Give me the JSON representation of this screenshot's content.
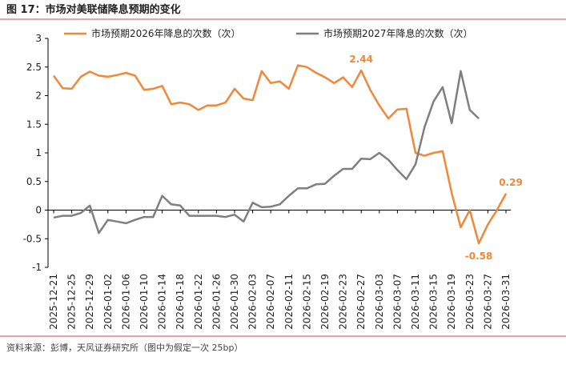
{
  "chart_data": {
    "type": "line",
    "title": "图 17：市场对美联储降息预期的变化",
    "source": "资料来源：彭博，天风证券研究所（图中为假定一次 25bp）",
    "categories": [
      "2025-12-21",
      null,
      "2025-12-25",
      null,
      "2025-12-29",
      null,
      "2026-01-02",
      null,
      "2026-01-06",
      null,
      "2026-01-10",
      null,
      "2026-01-14",
      null,
      "2026-01-18",
      null,
      "2026-01-22",
      null,
      "2026-01-26",
      null,
      "2026-01-30",
      null,
      "2026-02-03",
      null,
      "2026-02-07",
      null,
      "2026-02-11",
      null,
      "2026-02-15",
      null,
      "2026-02-19",
      null,
      "2026-02-23",
      null,
      "2026-02-27",
      null,
      "2026-03-03",
      null,
      "2026-03-07",
      null,
      "2026-03-11",
      null,
      "2026-03-15",
      null,
      "2026-03-19",
      null,
      "2026-03-23",
      null,
      "2026-03-27",
      null,
      "2026-03-31"
    ],
    "series": [
      {
        "name": "市场预期2026年降息的次数（次）",
        "color": "#f0883a",
        "values": [
          2.35,
          2.13,
          2.12,
          2.33,
          2.42,
          2.35,
          2.33,
          2.36,
          2.4,
          2.35,
          2.1,
          2.12,
          2.17,
          1.85,
          1.88,
          1.85,
          1.75,
          1.83,
          1.83,
          1.88,
          2.12,
          1.95,
          1.92,
          2.43,
          2.22,
          2.25,
          2.12,
          2.53,
          2.5,
          2.4,
          2.32,
          2.22,
          2.32,
          2.15,
          2.44,
          2.1,
          1.83,
          1.6,
          1.76,
          1.77,
          1.0,
          0.95,
          1.0,
          1.03,
          0.3,
          -0.3,
          0.0,
          -0.58,
          -0.25,
          0.0,
          0.29
        ],
        "value_labels": [
          null,
          null,
          null,
          null,
          null,
          null,
          null,
          null,
          null,
          null,
          null,
          null,
          null,
          null,
          null,
          null,
          null,
          null,
          null,
          null,
          null,
          null,
          null,
          null,
          null,
          null,
          null,
          null,
          null,
          null,
          null,
          null,
          null,
          null,
          "2.44",
          null,
          null,
          null,
          null,
          null,
          null,
          null,
          null,
          null,
          null,
          null,
          null,
          "-0.58",
          null,
          null,
          "0.29"
        ]
      },
      {
        "name": "市场预期2027年降息的次数（次）",
        "color": "#7f7f7f",
        "values": [
          -0.13,
          -0.1,
          -0.1,
          -0.05,
          0.08,
          -0.4,
          -0.17,
          -0.2,
          -0.23,
          -0.17,
          -0.12,
          -0.12,
          0.25,
          0.1,
          0.08,
          -0.1,
          -0.1,
          -0.1,
          -0.1,
          -0.12,
          -0.08,
          -0.2,
          0.13,
          0.05,
          0.06,
          0.1,
          0.25,
          0.38,
          0.38,
          0.45,
          0.46,
          0.6,
          0.72,
          0.72,
          0.9,
          0.89,
          1.0,
          0.88,
          0.7,
          0.54,
          0.8,
          1.45,
          1.9,
          2.15,
          1.52,
          2.43,
          1.75,
          1.6,
          null,
          null,
          null
        ]
      }
    ],
    "ylim": [
      -1,
      3
    ],
    "yticks": [
      3,
      2.5,
      2,
      1.5,
      1,
      0.5,
      0,
      -0.5,
      -1
    ]
  }
}
